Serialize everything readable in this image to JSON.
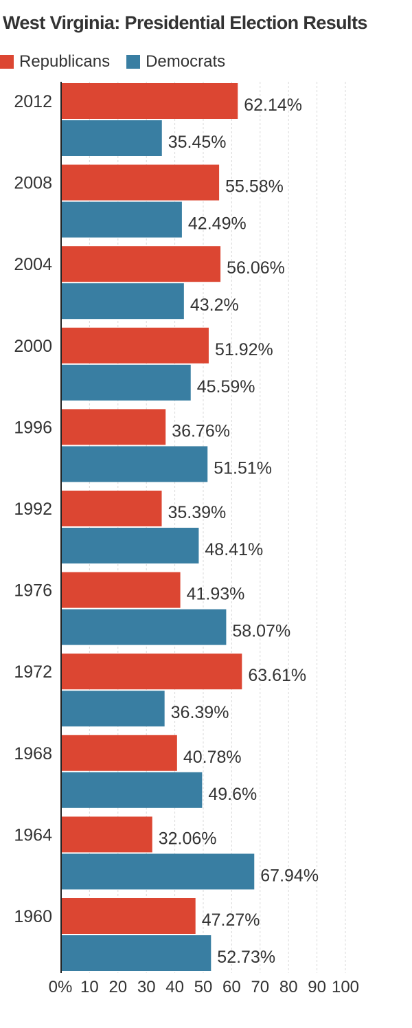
{
  "chart_data": {
    "type": "bar",
    "orientation": "horizontal",
    "title": "West Virginia: Presidential Election Results",
    "categories": [
      "2012",
      "2008",
      "2004",
      "2000",
      "1996",
      "1992",
      "1976",
      "1972",
      "1968",
      "1964",
      "1960"
    ],
    "series": [
      {
        "name": "Republicans",
        "color": "#dc4632",
        "values": [
          62.14,
          55.58,
          56.06,
          51.92,
          36.76,
          35.39,
          41.93,
          63.61,
          40.78,
          32.06,
          47.27
        ],
        "labels": [
          "62.14%",
          "55.58%",
          "56.06%",
          "51.92%",
          "36.76%",
          "35.39%",
          "41.93%",
          "63.61%",
          "40.78%",
          "32.06%",
          "47.27%"
        ]
      },
      {
        "name": "Democrats",
        "color": "#397ea2",
        "values": [
          35.45,
          42.49,
          43.2,
          45.59,
          51.51,
          48.41,
          58.07,
          36.39,
          49.6,
          67.94,
          52.73
        ],
        "labels": [
          "35.45%",
          "42.49%",
          "43.2%",
          "45.59%",
          "51.51%",
          "48.41%",
          "58.07%",
          "36.39%",
          "49.6%",
          "67.94%",
          "52.73%"
        ]
      }
    ],
    "xlim": [
      0,
      100
    ],
    "x_ticks": [
      "0%",
      "10",
      "20",
      "30",
      "40",
      "50",
      "60",
      "70",
      "80",
      "90",
      "100"
    ],
    "grid": true,
    "legend_position": "top-left"
  }
}
